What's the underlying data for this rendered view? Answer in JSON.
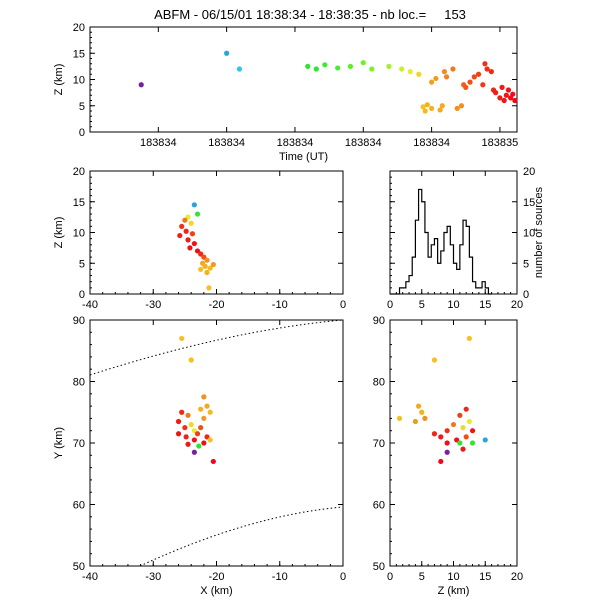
{
  "figure": {
    "title": "ABFM - 06/15/01 18:38:34 - 18:38:35 - nb loc.=     153"
  },
  "chart_data": [
    {
      "id": "time-height",
      "type": "scatter",
      "xlabel": "Time (UT)",
      "ylabel": "Z (km)",
      "xlim": [
        0,
        1
      ],
      "ylim": [
        0,
        20
      ],
      "xtick_values": [
        0.16,
        0.32,
        0.48,
        0.64,
        0.8,
        0.96
      ],
      "xtick_labels": [
        "183834",
        "183834",
        "183834",
        "183834",
        "183834",
        "183835"
      ],
      "yticks": [
        0,
        5,
        10,
        15,
        20
      ],
      "points": [
        {
          "x": 0.12,
          "y": 9,
          "color": "#7a1fa2"
        },
        {
          "x": 0.32,
          "y": 15,
          "color": "#29a3e0"
        },
        {
          "x": 0.35,
          "y": 12,
          "color": "#29c8e8"
        },
        {
          "x": 0.51,
          "y": 12.5,
          "color": "#2ee62e"
        },
        {
          "x": 0.53,
          "y": 12,
          "color": "#2ee62e"
        },
        {
          "x": 0.55,
          "y": 12.8,
          "color": "#3cee2a"
        },
        {
          "x": 0.58,
          "y": 12.2,
          "color": "#48f028"
        },
        {
          "x": 0.61,
          "y": 12.5,
          "color": "#5af028"
        },
        {
          "x": 0.64,
          "y": 13.2,
          "color": "#6cf02a"
        },
        {
          "x": 0.66,
          "y": 12.0,
          "color": "#7ef02a"
        },
        {
          "x": 0.7,
          "y": 12.5,
          "color": "#a8f02a"
        },
        {
          "x": 0.73,
          "y": 12.0,
          "color": "#c8f02a"
        },
        {
          "x": 0.75,
          "y": 11.5,
          "color": "#e8ec2a"
        },
        {
          "x": 0.77,
          "y": 11.0,
          "color": "#f0d82a"
        },
        {
          "x": 0.78,
          "y": 4.8,
          "color": "#f5c020"
        },
        {
          "x": 0.785,
          "y": 4.0,
          "color": "#f5b820"
        },
        {
          "x": 0.79,
          "y": 5.2,
          "color": "#f5b020"
        },
        {
          "x": 0.8,
          "y": 4.5,
          "color": "#f5b020"
        },
        {
          "x": 0.8,
          "y": 9.5,
          "color": "#f0a020"
        },
        {
          "x": 0.81,
          "y": 10.2,
          "color": "#f09a20"
        },
        {
          "x": 0.82,
          "y": 4.2,
          "color": "#f5a820"
        },
        {
          "x": 0.825,
          "y": 5.0,
          "color": "#f5a820"
        },
        {
          "x": 0.83,
          "y": 11.5,
          "color": "#f08c20"
        },
        {
          "x": 0.835,
          "y": 10.5,
          "color": "#f08420"
        },
        {
          "x": 0.85,
          "y": 12.0,
          "color": "#f07820"
        },
        {
          "x": 0.86,
          "y": 4.5,
          "color": "#f09020"
        },
        {
          "x": 0.87,
          "y": 5.0,
          "color": "#f09020"
        },
        {
          "x": 0.875,
          "y": 9.0,
          "color": "#f06018"
        },
        {
          "x": 0.88,
          "y": 8.5,
          "color": "#f05818"
        },
        {
          "x": 0.89,
          "y": 9.5,
          "color": "#f05018"
        },
        {
          "x": 0.9,
          "y": 10.5,
          "color": "#f04818"
        },
        {
          "x": 0.91,
          "y": 11.0,
          "color": "#f04018"
        },
        {
          "x": 0.92,
          "y": 9.0,
          "color": "#f03818"
        },
        {
          "x": 0.925,
          "y": 13.0,
          "color": "#f03018"
        },
        {
          "x": 0.93,
          "y": 12.0,
          "color": "#f02c18"
        },
        {
          "x": 0.94,
          "y": 11.5,
          "color": "#f02818"
        },
        {
          "x": 0.945,
          "y": 8.0,
          "color": "#f02418"
        },
        {
          "x": 0.95,
          "y": 7.5,
          "color": "#f02018"
        },
        {
          "x": 0.96,
          "y": 6.5,
          "color": "#f01c18"
        },
        {
          "x": 0.965,
          "y": 8.5,
          "color": "#f01818"
        },
        {
          "x": 0.97,
          "y": 6.0,
          "color": "#f01418"
        },
        {
          "x": 0.975,
          "y": 7.0,
          "color": "#f01418"
        },
        {
          "x": 0.98,
          "y": 8.0,
          "color": "#f01018"
        },
        {
          "x": 0.985,
          "y": 6.5,
          "color": "#f01018"
        },
        {
          "x": 0.99,
          "y": 7.2,
          "color": "#f00c18"
        },
        {
          "x": 0.995,
          "y": 6.0,
          "color": "#f00818"
        }
      ]
    },
    {
      "id": "x-z",
      "type": "scatter",
      "xlabel": "",
      "ylabel": "Z (km)",
      "xlim": [
        -40,
        0
      ],
      "ylim": [
        0,
        20
      ],
      "xticks": [
        -40,
        -30,
        -20,
        -10,
        0
      ],
      "yticks": [
        0,
        5,
        10,
        15,
        20
      ],
      "points": [
        {
          "x": -23.5,
          "y": 14.5,
          "color": "#29a3e0"
        },
        {
          "x": -23.0,
          "y": 13.0,
          "color": "#2ee62e"
        },
        {
          "x": -24.5,
          "y": 12.5,
          "color": "#e8ec2a"
        },
        {
          "x": -25.0,
          "y": 12.0,
          "color": "#f07820"
        },
        {
          "x": -25.5,
          "y": 11.0,
          "color": "#f03018"
        },
        {
          "x": -24.0,
          "y": 11.5,
          "color": "#f0d82a"
        },
        {
          "x": -24.8,
          "y": 10.2,
          "color": "#f02418"
        },
        {
          "x": -25.8,
          "y": 9.5,
          "color": "#f02018"
        },
        {
          "x": -23.8,
          "y": 9.8,
          "color": "#f04018"
        },
        {
          "x": -24.5,
          "y": 8.8,
          "color": "#f01818"
        },
        {
          "x": -23.5,
          "y": 8.2,
          "color": "#f01418"
        },
        {
          "x": -24.2,
          "y": 7.5,
          "color": "#f01018"
        },
        {
          "x": -23.0,
          "y": 7.0,
          "color": "#f00c18"
        },
        {
          "x": -22.5,
          "y": 6.5,
          "color": "#f02818"
        },
        {
          "x": -22.0,
          "y": 6.0,
          "color": "#f05018"
        },
        {
          "x": -21.5,
          "y": 5.5,
          "color": "#f09020"
        },
        {
          "x": -22.2,
          "y": 5.0,
          "color": "#f5a820"
        },
        {
          "x": -21.8,
          "y": 4.5,
          "color": "#f5b020"
        },
        {
          "x": -21.0,
          "y": 4.2,
          "color": "#f5b820"
        },
        {
          "x": -22.5,
          "y": 4.0,
          "color": "#f5c020"
        },
        {
          "x": -20.5,
          "y": 4.8,
          "color": "#f09a20"
        },
        {
          "x": -21.5,
          "y": 3.5,
          "color": "#f5b020"
        },
        {
          "x": -21.2,
          "y": 1.0,
          "color": "#f5c020"
        }
      ]
    },
    {
      "id": "histogram",
      "type": "line",
      "xlabel": "",
      "ylabel": "number of sources",
      "xlim": [
        0,
        20
      ],
      "ylim": [
        0,
        20
      ],
      "xticks": [
        0,
        5,
        10,
        15,
        20
      ],
      "yticks": [
        0,
        5,
        10,
        15,
        20
      ],
      "x": [
        0,
        1,
        1.5,
        2,
        2.5,
        3,
        3.5,
        4,
        4.5,
        5,
        5.5,
        6,
        6.5,
        7,
        7.5,
        8,
        8.5,
        9,
        9.5,
        10,
        10.5,
        11,
        11.5,
        12,
        12.5,
        13,
        13.5,
        14,
        14.5,
        15,
        15.5,
        16
      ],
      "values": [
        0,
        0,
        1,
        1,
        2,
        3,
        6,
        12,
        17,
        15,
        10,
        6,
        8,
        9,
        5,
        7,
        10,
        11,
        8,
        5,
        4,
        8,
        12,
        11,
        6,
        2,
        1,
        1,
        2,
        1,
        0,
        0
      ]
    },
    {
      "id": "x-y",
      "type": "scatter",
      "xlabel": "X (km)",
      "ylabel": "Y (km)",
      "xlim": [
        -40,
        0
      ],
      "ylim": [
        50,
        90
      ],
      "xticks": [
        -40,
        -30,
        -20,
        -10,
        0
      ],
      "yticks": [
        50,
        60,
        70,
        80,
        90
      ],
      "points": [
        {
          "x": -25.5,
          "y": 87,
          "color": "#f5c020"
        },
        {
          "x": -24.0,
          "y": 83.5,
          "color": "#f5c020"
        },
        {
          "x": -22.0,
          "y": 77.5,
          "color": "#f09020"
        },
        {
          "x": -21.5,
          "y": 76.0,
          "color": "#f5a820"
        },
        {
          "x": -22.5,
          "y": 75.5,
          "color": "#f5b020"
        },
        {
          "x": -21.0,
          "y": 75.0,
          "color": "#f5b820"
        },
        {
          "x": -22.0,
          "y": 74.0,
          "color": "#f09a20"
        },
        {
          "x": -25.5,
          "y": 75.0,
          "color": "#f02418"
        },
        {
          "x": -24.5,
          "y": 74.5,
          "color": "#f07820"
        },
        {
          "x": -26.0,
          "y": 73.5,
          "color": "#f01818"
        },
        {
          "x": -25.0,
          "y": 72.5,
          "color": "#f03018"
        },
        {
          "x": -24.0,
          "y": 73.0,
          "color": "#f0d82a"
        },
        {
          "x": -23.5,
          "y": 72.0,
          "color": "#e8ec2a"
        },
        {
          "x": -26.0,
          "y": 71.5,
          "color": "#f01418"
        },
        {
          "x": -24.8,
          "y": 71.0,
          "color": "#f02018"
        },
        {
          "x": -23.0,
          "y": 71.5,
          "color": "#f04018"
        },
        {
          "x": -22.5,
          "y": 72.5,
          "color": "#f05018"
        },
        {
          "x": -21.5,
          "y": 71.0,
          "color": "#f02818"
        },
        {
          "x": -23.5,
          "y": 70.5,
          "color": "#f01018"
        },
        {
          "x": -22.0,
          "y": 70.0,
          "color": "#f00c18"
        },
        {
          "x": -24.5,
          "y": 69.8,
          "color": "#f01818"
        },
        {
          "x": -22.8,
          "y": 69.5,
          "color": "#2ee62e"
        },
        {
          "x": -21.0,
          "y": 70.5,
          "color": "#f5c020"
        },
        {
          "x": -23.5,
          "y": 68.5,
          "color": "#7a1fa2"
        },
        {
          "x": -20.5,
          "y": 67.0,
          "color": "#f00818"
        }
      ]
    },
    {
      "id": "z-y",
      "type": "scatter",
      "xlabel": "Z (km)",
      "ylabel": "",
      "xlim": [
        0,
        20
      ],
      "ylim": [
        50,
        90
      ],
      "xticks": [
        0,
        5,
        10,
        15,
        20
      ],
      "yticks": [
        50,
        60,
        70,
        80,
        90
      ],
      "points": [
        {
          "x": 12.5,
          "y": 87,
          "color": "#f5c020"
        },
        {
          "x": 7.0,
          "y": 83.5,
          "color": "#f5c020"
        },
        {
          "x": 1.5,
          "y": 74.0,
          "color": "#f5c020"
        },
        {
          "x": 4.5,
          "y": 76.0,
          "color": "#f5a820"
        },
        {
          "x": 5.0,
          "y": 75.0,
          "color": "#f5b020"
        },
        {
          "x": 5.5,
          "y": 74.0,
          "color": "#f09020"
        },
        {
          "x": 4.0,
          "y": 73.5,
          "color": "#f09a20"
        },
        {
          "x": 7.0,
          "y": 71.5,
          "color": "#f02418"
        },
        {
          "x": 8.0,
          "y": 71.0,
          "color": "#f01818"
        },
        {
          "x": 9.0,
          "y": 72.0,
          "color": "#f03018"
        },
        {
          "x": 10.0,
          "y": 73.0,
          "color": "#f07820"
        },
        {
          "x": 11.0,
          "y": 74.5,
          "color": "#f04018"
        },
        {
          "x": 12.0,
          "y": 75.5,
          "color": "#f02818"
        },
        {
          "x": 12.5,
          "y": 73.5,
          "color": "#e8ec2a"
        },
        {
          "x": 11.5,
          "y": 72.5,
          "color": "#f0d82a"
        },
        {
          "x": 12.0,
          "y": 71.0,
          "color": "#f05018"
        },
        {
          "x": 13.0,
          "y": 72.0,
          "color": "#f01418"
        },
        {
          "x": 10.5,
          "y": 70.5,
          "color": "#f01018"
        },
        {
          "x": 9.0,
          "y": 70.0,
          "color": "#f00c18"
        },
        {
          "x": 11.0,
          "y": 70.0,
          "color": "#2ee62e"
        },
        {
          "x": 13.0,
          "y": 70.0,
          "color": "#2ee62e"
        },
        {
          "x": 15.0,
          "y": 70.5,
          "color": "#29a3e0"
        },
        {
          "x": 9.0,
          "y": 68.5,
          "color": "#7a1fa2"
        },
        {
          "x": 8.0,
          "y": 67.0,
          "color": "#f00818"
        },
        {
          "x": 11.5,
          "y": 69.0,
          "color": "#f01818"
        }
      ]
    }
  ]
}
